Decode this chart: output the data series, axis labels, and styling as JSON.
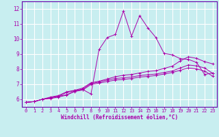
{
  "xlabel": "Windchill (Refroidissement éolien,°C)",
  "background_color": "#c8eef0",
  "grid_color": "#ffffff",
  "line_color": "#aa00aa",
  "xlim": [
    -0.5,
    23.5
  ],
  "ylim": [
    5.5,
    12.5
  ],
  "xticks": [
    0,
    1,
    2,
    3,
    4,
    5,
    6,
    7,
    8,
    9,
    10,
    11,
    12,
    13,
    14,
    15,
    16,
    17,
    18,
    19,
    20,
    21,
    22,
    23
  ],
  "yticks": [
    6,
    7,
    8,
    9,
    10,
    11,
    12
  ],
  "series": [
    [
      5.8,
      5.85,
      6.0,
      6.1,
      6.2,
      6.3,
      6.55,
      6.65,
      6.35,
      9.3,
      10.1,
      10.3,
      11.85,
      10.2,
      11.55,
      10.75,
      10.1,
      9.05,
      8.95,
      8.7,
      8.65,
      8.45,
      7.65,
      7.75
    ],
    [
      5.8,
      5.85,
      6.0,
      6.15,
      6.25,
      6.5,
      6.6,
      6.75,
      7.1,
      7.2,
      7.35,
      7.5,
      7.6,
      7.65,
      7.75,
      7.85,
      7.9,
      8.05,
      8.2,
      8.55,
      8.82,
      8.72,
      8.5,
      8.35
    ],
    [
      5.8,
      5.85,
      6.0,
      6.1,
      6.2,
      6.45,
      6.58,
      6.68,
      7.05,
      7.15,
      7.28,
      7.38,
      7.43,
      7.48,
      7.58,
      7.63,
      7.68,
      7.78,
      7.88,
      8.08,
      8.28,
      8.22,
      8.08,
      7.72
    ],
    [
      5.8,
      5.85,
      6.0,
      6.05,
      6.15,
      6.28,
      6.52,
      6.62,
      6.98,
      7.08,
      7.18,
      7.28,
      7.32,
      7.38,
      7.48,
      7.52,
      7.58,
      7.68,
      7.78,
      7.93,
      8.08,
      8.02,
      7.88,
      7.53
    ]
  ]
}
